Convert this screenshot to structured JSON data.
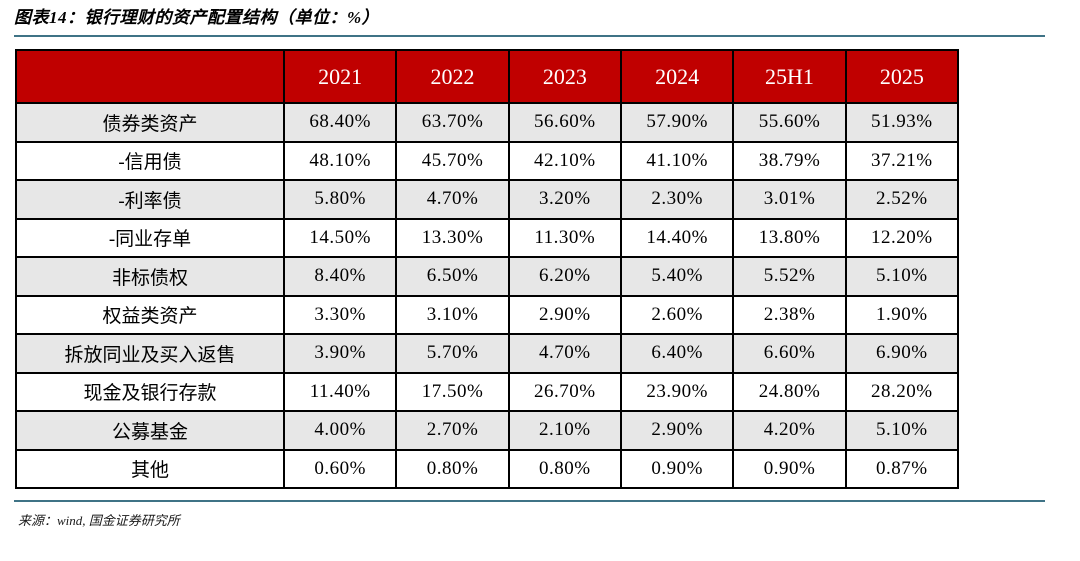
{
  "figure": {
    "title": "图表14：银行理财的资产配置结构（单位：%）",
    "source": "来源：wind, 国金证券研究所"
  },
  "colors": {
    "header_bg": "#C00000",
    "header_text": "#ffffff",
    "row_alt_bg": "#E7E7E7",
    "row_bg": "#ffffff",
    "grid_border": "#000000",
    "accent_line": "#3F7386"
  },
  "chart_data": {
    "type": "table",
    "title": "银行理财的资产配置结构（单位：%）",
    "unit": "%",
    "columns": [
      "2021",
      "2022",
      "2023",
      "2024",
      "25H1",
      "2025"
    ],
    "rows": [
      {
        "label": "债券类资产",
        "values": [
          "68.40%",
          "63.70%",
          "56.60%",
          "57.90%",
          "55.60%",
          "51.93%"
        ]
      },
      {
        "label": "-信用债",
        "values": [
          "48.10%",
          "45.70%",
          "42.10%",
          "41.10%",
          "38.79%",
          "37.21%"
        ]
      },
      {
        "label": "-利率债",
        "values": [
          "5.80%",
          "4.70%",
          "3.20%",
          "2.30%",
          "3.01%",
          "2.52%"
        ]
      },
      {
        "label": "-同业存单",
        "values": [
          "14.50%",
          "13.30%",
          "11.30%",
          "14.40%",
          "13.80%",
          "12.20%"
        ]
      },
      {
        "label": "非标债权",
        "values": [
          "8.40%",
          "6.50%",
          "6.20%",
          "5.40%",
          "5.52%",
          "5.10%"
        ]
      },
      {
        "label": "权益类资产",
        "values": [
          "3.30%",
          "3.10%",
          "2.90%",
          "2.60%",
          "2.38%",
          "1.90%"
        ]
      },
      {
        "label": "拆放同业及买入返售",
        "values": [
          "3.90%",
          "5.70%",
          "4.70%",
          "6.40%",
          "6.60%",
          "6.90%"
        ]
      },
      {
        "label": "现金及银行存款",
        "values": [
          "11.40%",
          "17.50%",
          "26.70%",
          "23.90%",
          "24.80%",
          "28.20%"
        ]
      },
      {
        "label": "公募基金",
        "values": [
          "4.00%",
          "2.70%",
          "2.10%",
          "2.90%",
          "4.20%",
          "5.10%"
        ]
      },
      {
        "label": "其他",
        "values": [
          "0.60%",
          "0.80%",
          "0.80%",
          "0.90%",
          "0.90%",
          "0.87%"
        ]
      }
    ]
  }
}
